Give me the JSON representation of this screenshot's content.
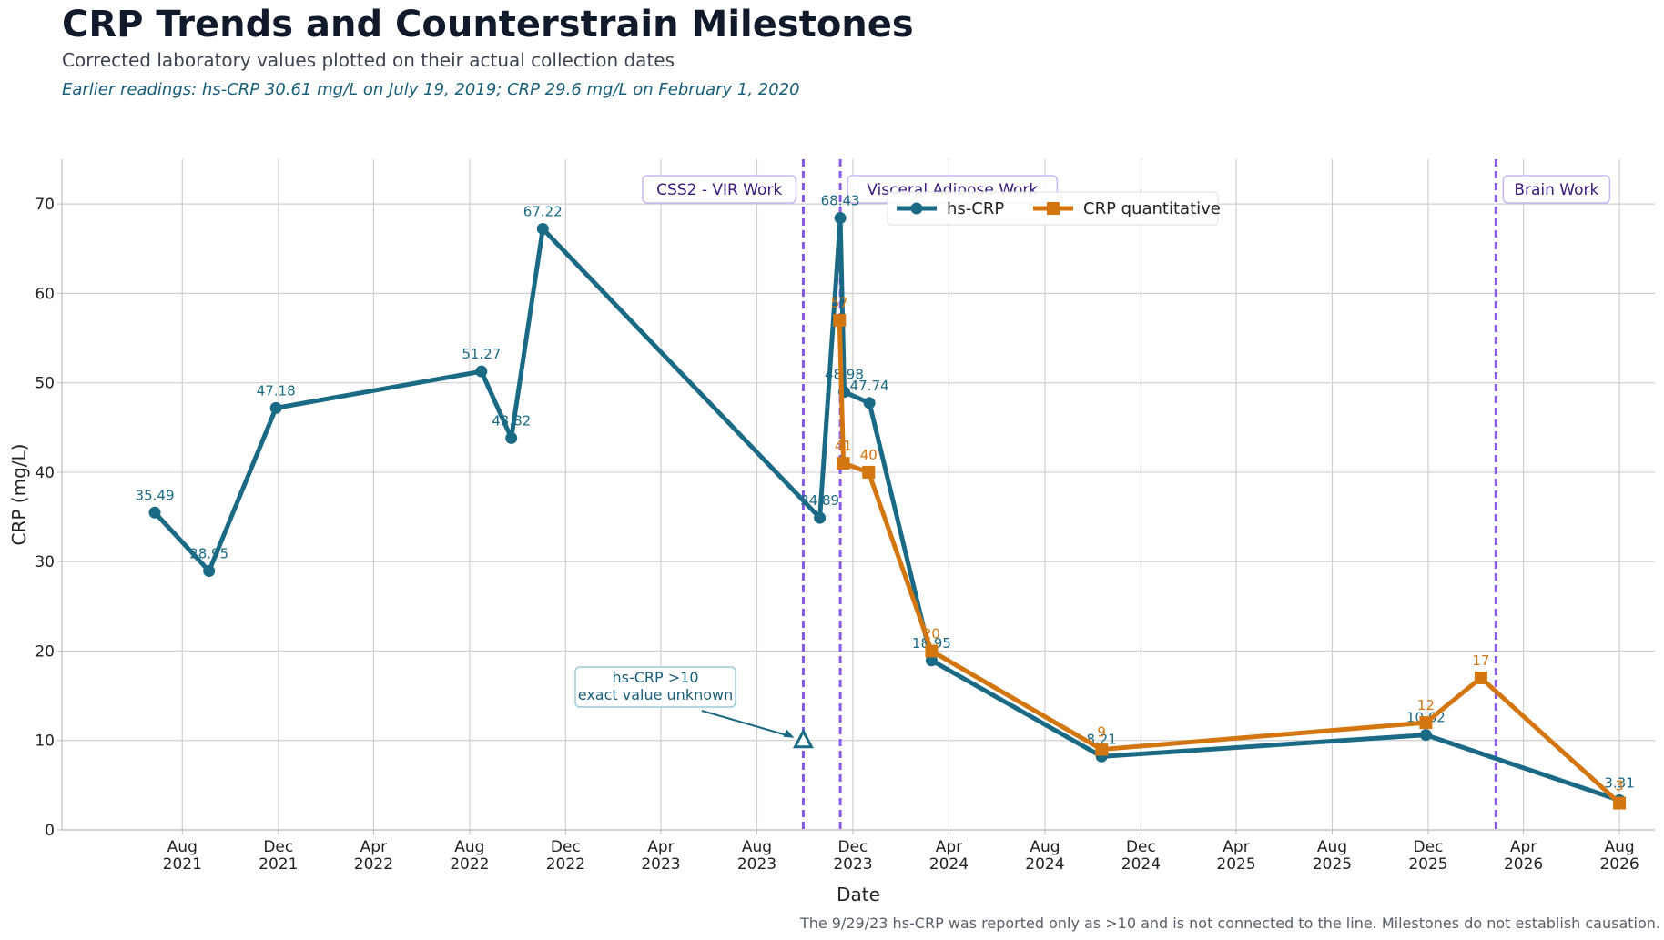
{
  "header": {
    "title": "CRP Trends and Counterstrain Milestones",
    "subtitle": "Corrected laboratory values plotted on their actual collection dates",
    "note": "Earlier readings: hs-CRP 30.61 mg/L on July 19, 2019; CRP 29.6 mg/L on February 1, 2020"
  },
  "footnote": "The 9/29/23 hs-CRP was reported only as >10 and is not connected to the line. Milestones do not establish causation.",
  "chart_data": {
    "type": "line",
    "xlabel": "Date",
    "ylabel": "CRP (mg/L)",
    "xlim": [
      "2021-03-01",
      "2026-09-15"
    ],
    "ylim": [
      0,
      75
    ],
    "y_ticks": [
      0,
      10,
      20,
      30,
      40,
      50,
      60,
      70
    ],
    "x_ticks": [
      {
        "date": "2021-08-01",
        "label": [
          "Aug",
          "2021"
        ]
      },
      {
        "date": "2021-12-01",
        "label": [
          "Dec",
          "2021"
        ]
      },
      {
        "date": "2022-04-01",
        "label": [
          "Apr",
          "2022"
        ]
      },
      {
        "date": "2022-08-01",
        "label": [
          "Aug",
          "2022"
        ]
      },
      {
        "date": "2022-12-01",
        "label": [
          "Dec",
          "2022"
        ]
      },
      {
        "date": "2023-04-01",
        "label": [
          "Apr",
          "2023"
        ]
      },
      {
        "date": "2023-08-01",
        "label": [
          "Aug",
          "2023"
        ]
      },
      {
        "date": "2023-12-01",
        "label": [
          "Dec",
          "2023"
        ]
      },
      {
        "date": "2024-04-01",
        "label": [
          "Apr",
          "2024"
        ]
      },
      {
        "date": "2024-08-01",
        "label": [
          "Aug",
          "2024"
        ]
      },
      {
        "date": "2024-12-01",
        "label": [
          "Dec",
          "2024"
        ]
      },
      {
        "date": "2025-04-01",
        "label": [
          "Apr",
          "2025"
        ]
      },
      {
        "date": "2025-08-01",
        "label": [
          "Aug",
          "2025"
        ]
      },
      {
        "date": "2025-12-01",
        "label": [
          "Dec",
          "2025"
        ]
      },
      {
        "date": "2026-04-01",
        "label": [
          "Apr",
          "2026"
        ]
      },
      {
        "date": "2026-08-01",
        "label": [
          "Aug",
          "2026"
        ]
      }
    ],
    "grid": true,
    "legend_position": "top-center",
    "series": [
      {
        "name": "hs-CRP",
        "color": "#1b6a85",
        "marker": "circle",
        "points": [
          {
            "date": "2021-06-27",
            "value": 35.49,
            "label": "35.49"
          },
          {
            "date": "2021-09-04",
            "value": 28.95,
            "label": "28.95"
          },
          {
            "date": "2021-11-28",
            "value": 47.18,
            "label": "47.18"
          },
          {
            "date": "2022-08-16",
            "value": 51.27,
            "label": "51.27"
          },
          {
            "date": "2022-09-23",
            "value": 43.82,
            "label": "43.82"
          },
          {
            "date": "2022-11-02",
            "value": 67.22,
            "label": "67.22"
          },
          {
            "date": "2023-10-20",
            "value": 34.89,
            "label": "34.89"
          },
          {
            "date": "2023-11-15",
            "value": 68.43,
            "label": "68.43"
          },
          {
            "date": "2023-11-20",
            "value": 48.98,
            "label": "48.98"
          },
          {
            "date": "2023-12-22",
            "value": 47.74,
            "label": "47.74"
          },
          {
            "date": "2024-03-10",
            "value": 18.95,
            "label": "18.95"
          },
          {
            "date": "2024-10-12",
            "value": 8.21,
            "label": "8.21"
          },
          {
            "date": "2025-11-28",
            "value": 10.62,
            "label": "10.62"
          },
          {
            "date": "2026-08-01",
            "value": 3.31,
            "label": "3.31"
          }
        ]
      },
      {
        "name": "CRP quantitative",
        "color": "#d4760f",
        "marker": "square",
        "points": [
          {
            "date": "2023-11-14",
            "value": 57,
            "label": "57"
          },
          {
            "date": "2023-11-19",
            "value": 41,
            "label": "41"
          },
          {
            "date": "2023-12-21",
            "value": 40,
            "label": "40"
          },
          {
            "date": "2024-03-10",
            "value": 20,
            "label": "20"
          },
          {
            "date": "2024-10-12",
            "value": 9,
            "label": "9"
          },
          {
            "date": "2025-11-28",
            "value": 12,
            "label": "12"
          },
          {
            "date": "2026-02-06",
            "value": 17,
            "label": "17"
          },
          {
            "date": "2026-08-01",
            "value": 3,
            "label": "3"
          }
        ]
      }
    ],
    "unconnected_point": {
      "date": "2023-09-29",
      "value": 10,
      "marker": "open-triangle",
      "color": "#1b6a85"
    },
    "annotation": {
      "lines": [
        "hs-CRP >10",
        "exact value unknown"
      ]
    },
    "milestones": [
      {
        "date": "2023-09-29",
        "label": "CSS2 - VIR Work",
        "side": "left"
      },
      {
        "date": "2023-11-15",
        "label": "Visceral Adipose Work",
        "side": "right"
      },
      {
        "date": "2026-02-25",
        "label": "Brain Work",
        "side": "right"
      }
    ],
    "milestone_color": "#8a5ae6"
  }
}
